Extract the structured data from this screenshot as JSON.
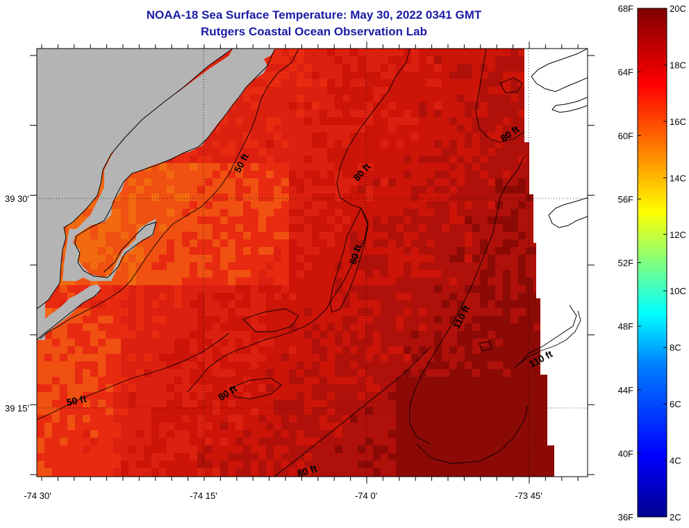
{
  "title": {
    "line1": "NOAA-18 Sea Surface Temperature:  May 30, 2022 0341 GMT",
    "line2": "Rutgers Coastal Ocean Observation Lab"
  },
  "colors": {
    "title": "#1a1aa6",
    "land": "#b4b4b4",
    "no_data": "#ffffff",
    "sst_cool": "#f26a10",
    "sst_mid": "#e82a10",
    "sst_warm": "#cc1408",
    "sst_hot": "#8c0a06"
  },
  "axes": {
    "x_ticks": [
      {
        "label": "-74 30'",
        "lon": -74.5
      },
      {
        "label": "-74 15'",
        "lon": -74.25
      },
      {
        "label": "-74 0'",
        "lon": -74.0
      },
      {
        "label": "-73 45'",
        "lon": -73.75
      }
    ],
    "y_ticks": [
      {
        "label": "39 30'",
        "lat": 39.5
      },
      {
        "label": "39 15'",
        "lat": 39.25
      }
    ]
  },
  "contour_labels": [
    {
      "text": "50 ft"
    },
    {
      "text": "80 ft"
    },
    {
      "text": "80 ft"
    },
    {
      "text": "80 ft"
    },
    {
      "text": "110 ft"
    },
    {
      "text": "110 ft"
    },
    {
      "text": "50 ft"
    },
    {
      "text": "80 ft"
    },
    {
      "text": "80 ft"
    }
  ],
  "colorbar": {
    "fahrenheit_labels": [
      "68F",
      "64F",
      "60F",
      "56F",
      "52F",
      "48F",
      "44F",
      "40F",
      "36F"
    ],
    "celsius_labels": [
      "20C",
      "18C",
      "16C",
      "14C",
      "12C",
      "10C",
      "8C",
      "6C",
      "4C",
      "2C"
    ],
    "range_c": [
      2,
      20
    ],
    "colormap": [
      "#00008f",
      "#0000ff",
      "#0080ff",
      "#00ffff",
      "#80ff80",
      "#ffff00",
      "#ff8000",
      "#ff0000",
      "#800000"
    ]
  }
}
